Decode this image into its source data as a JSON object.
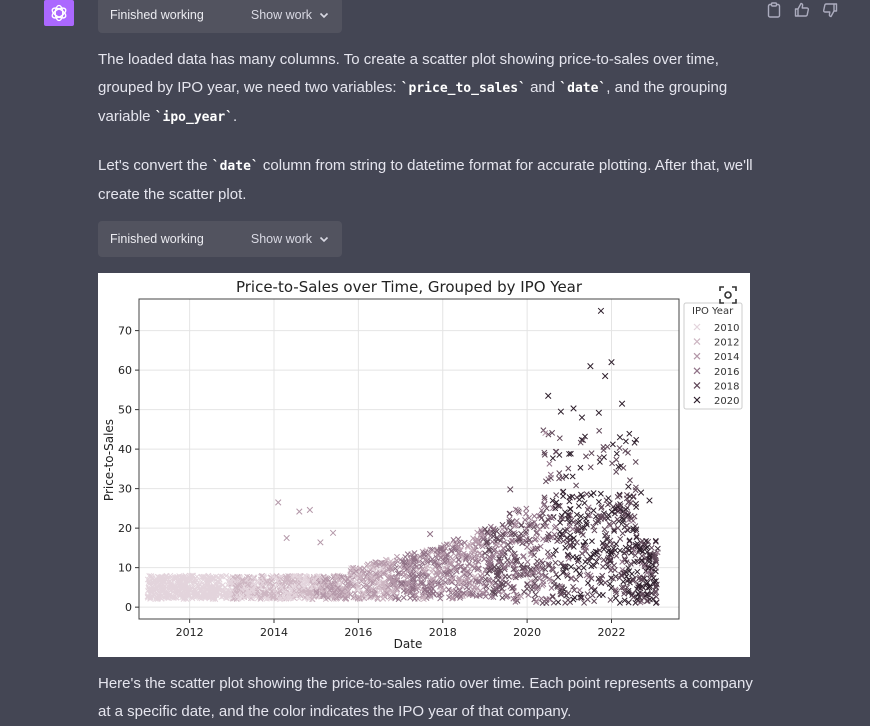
{
  "header_actions": [
    "clipboard-icon",
    "thumbs-up-icon",
    "thumbs-down-icon"
  ],
  "work_pill_1": {
    "status": "Finished working",
    "toggle": "Show work"
  },
  "paragraph_1": {
    "t1": "The loaded data has many columns. To create a scatter plot showing price-to-sales over time, grouped by IPO year, we need two variables: ",
    "c1": "`price_to_sales`",
    "t2": " and ",
    "c2": "`date`",
    "t3": ", and the grouping variable ",
    "c3": "`ipo_year`",
    "t4": "."
  },
  "paragraph_2": {
    "t1": "Let's convert the ",
    "c1": "`date`",
    "t2": " column from string to datetime format for accurate plotting. After that, we'll create the scatter plot."
  },
  "work_pill_2": {
    "status": "Finished working",
    "toggle": "Show work"
  },
  "paragraph_3": "Here's the scatter plot showing the price-to-sales ratio over time. Each point represents a company at a specific date, and the color indicates the IPO year of that company.",
  "chart_data": {
    "type": "scatter",
    "title": "Price-to-Sales over Time, Grouped by IPO Year",
    "xlabel": "Date",
    "ylabel": "Price-to-Sales",
    "xlim": [
      2010.8,
      2023.6
    ],
    "ylim": [
      -3,
      78
    ],
    "x_ticks": [
      2012,
      2014,
      2016,
      2018,
      2020,
      2022
    ],
    "y_ticks": [
      0,
      10,
      20,
      30,
      40,
      50,
      60,
      70
    ],
    "grid": true,
    "legend": {
      "title": "IPO Year",
      "position": "top-right"
    },
    "series": [
      {
        "name": "2010",
        "color": "#e3d4dc"
      },
      {
        "name": "2012",
        "color": "#cdb6c2"
      },
      {
        "name": "2014",
        "color": "#b397a8"
      },
      {
        "name": "2016",
        "color": "#8f7186"
      },
      {
        "name": "2018",
        "color": "#5f4758"
      },
      {
        "name": "2020",
        "color": "#2e1f2c"
      }
    ],
    "outliers": [
      {
        "x": 2014.1,
        "y": 26.5,
        "series": 2
      },
      {
        "x": 2014.6,
        "y": 24.2,
        "series": 2
      },
      {
        "x": 2014.85,
        "y": 24.6,
        "series": 2
      },
      {
        "x": 2014.3,
        "y": 17.5,
        "series": 2
      },
      {
        "x": 2015.1,
        "y": 16.4,
        "series": 2
      },
      {
        "x": 2015.4,
        "y": 18.8,
        "series": 2
      },
      {
        "x": 2017.7,
        "y": 18.5,
        "series": 3
      },
      {
        "x": 2019.6,
        "y": 29.8,
        "series": 4
      },
      {
        "x": 2020.5,
        "y": 53.5,
        "series": 5
      },
      {
        "x": 2020.8,
        "y": 49.5,
        "series": 5
      },
      {
        "x": 2021.1,
        "y": 50.3,
        "series": 5
      },
      {
        "x": 2021.5,
        "y": 61.0,
        "series": 5
      },
      {
        "x": 2021.75,
        "y": 75.0,
        "series": 5
      },
      {
        "x": 2021.85,
        "y": 58.5,
        "series": 5
      },
      {
        "x": 2022.0,
        "y": 62.0,
        "series": 5
      },
      {
        "x": 2022.25,
        "y": 51.5,
        "series": 5
      },
      {
        "x": 2021.7,
        "y": 49.2,
        "series": 5
      },
      {
        "x": 2021.3,
        "y": 48.0,
        "series": 5
      },
      {
        "x": 2022.2,
        "y": 43.0,
        "series": 5
      },
      {
        "x": 2022.9,
        "y": 27.0,
        "series": 5
      },
      {
        "x": 2022.4,
        "y": 30.5,
        "series": 5
      },
      {
        "x": 2022.7,
        "y": 29.0,
        "series": 5
      }
    ]
  }
}
